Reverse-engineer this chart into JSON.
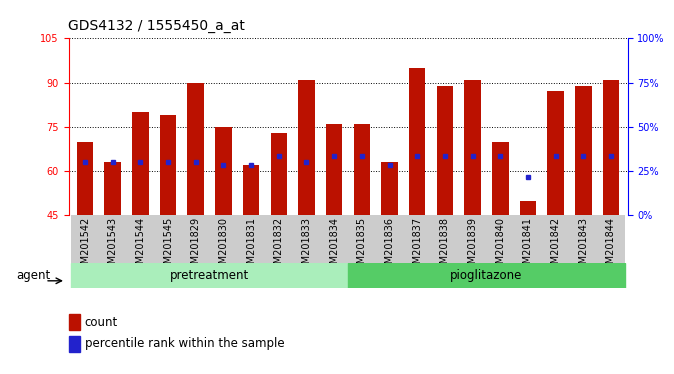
{
  "title": "GDS4132 / 1555450_a_at",
  "samples": [
    "GSM201542",
    "GSM201543",
    "GSM201544",
    "GSM201545",
    "GSM201829",
    "GSM201830",
    "GSM201831",
    "GSM201832",
    "GSM201833",
    "GSM201834",
    "GSM201835",
    "GSM201836",
    "GSM201837",
    "GSM201838",
    "GSM201839",
    "GSM201840",
    "GSM201841",
    "GSM201842",
    "GSM201843",
    "GSM201844"
  ],
  "bar_tops": [
    70,
    63,
    80,
    79,
    90,
    75,
    62,
    73,
    91,
    76,
    76,
    63,
    95,
    89,
    91,
    70,
    50,
    87,
    89,
    91
  ],
  "blue_dot_y": [
    63,
    63,
    63,
    63,
    63,
    62,
    62,
    65,
    63,
    65,
    65,
    62,
    65,
    65,
    65,
    65,
    58,
    65,
    65,
    65
  ],
  "pretreatment_count": 10,
  "pioglitazone_count": 10,
  "ymin": 45,
  "ymax": 105,
  "yticks_left": [
    45,
    60,
    75,
    90,
    105
  ],
  "ytick_labels_left": [
    "45",
    "60",
    "75",
    "90",
    "105"
  ],
  "yticks_right_pct": [
    0,
    25,
    50,
    75,
    100
  ],
  "ytick_labels_right": [
    "0%",
    "25%",
    "50%",
    "75%",
    "100%"
  ],
  "bar_color": "#bb1100",
  "dot_color": "#2222cc",
  "pretreatment_color": "#aaeebb",
  "pioglitazone_color": "#55cc66",
  "agent_label": "agent",
  "pretreatment_label": "pretreatment",
  "pioglitazone_label": "pioglitazone",
  "legend_count": "count",
  "legend_pct": "percentile rank within the sample",
  "xticklabel_bg": "#cccccc",
  "plot_bg": "#ffffff",
  "title_fontsize": 10,
  "tick_fontsize": 7,
  "label_fontsize": 8.5
}
